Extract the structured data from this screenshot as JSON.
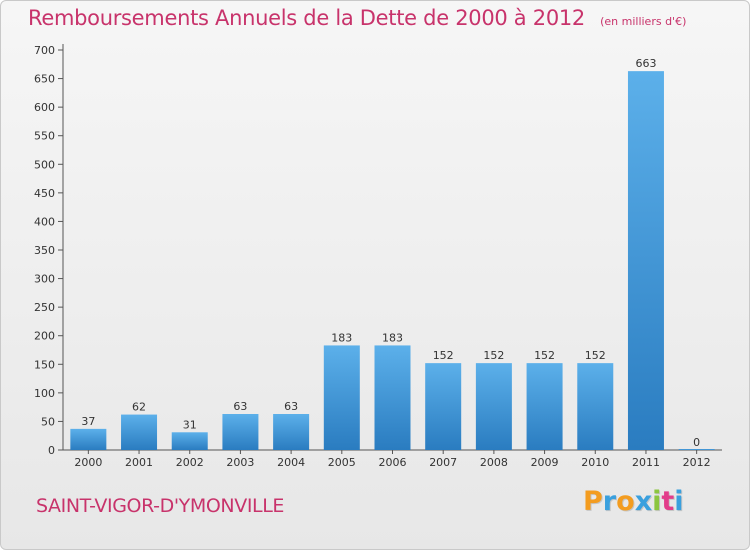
{
  "chart_data": {
    "type": "bar",
    "title": "Remboursements Annuels de la Dette de 2000 à 2012",
    "subtitle": "(en milliers d'€)",
    "categories": [
      "2000",
      "2001",
      "2002",
      "2003",
      "2004",
      "2005",
      "2006",
      "2007",
      "2008",
      "2009",
      "2010",
      "2011",
      "2012"
    ],
    "values": [
      37,
      62,
      31,
      63,
      63,
      183,
      183,
      152,
      152,
      152,
      152,
      663,
      0
    ],
    "data_labels": [
      "37",
      "62",
      "31",
      "63",
      "63",
      "183",
      "183",
      "152",
      "152",
      "152",
      "152",
      "663",
      "0"
    ],
    "ylim": [
      0,
      700
    ],
    "y_ticks": [
      0,
      50,
      100,
      150,
      200,
      250,
      300,
      350,
      400,
      450,
      500,
      550,
      600,
      650,
      700
    ],
    "grid": false,
    "bar_color": "#3d95d8",
    "bar_color_light": "#5cb0ea",
    "bar_color_dark": "#2a7cc0"
  },
  "footer": {
    "commune": "SAINT-VIGOR-D'YMONVILLE"
  },
  "brand": {
    "letters": [
      {
        "char": "P",
        "color": "#f39c1f"
      },
      {
        "char": "r",
        "color": "#3aa0de"
      },
      {
        "char": "o",
        "color": "#f39c1f"
      },
      {
        "char": "x",
        "color": "#3aa0de"
      },
      {
        "char": "i",
        "color": "#8cc63f"
      },
      {
        "char": "t",
        "color": "#e23d8a"
      },
      {
        "char": "i",
        "color": "#3aa0de"
      }
    ]
  },
  "colors": {
    "title": "#c8336b",
    "axis": "#555555"
  }
}
